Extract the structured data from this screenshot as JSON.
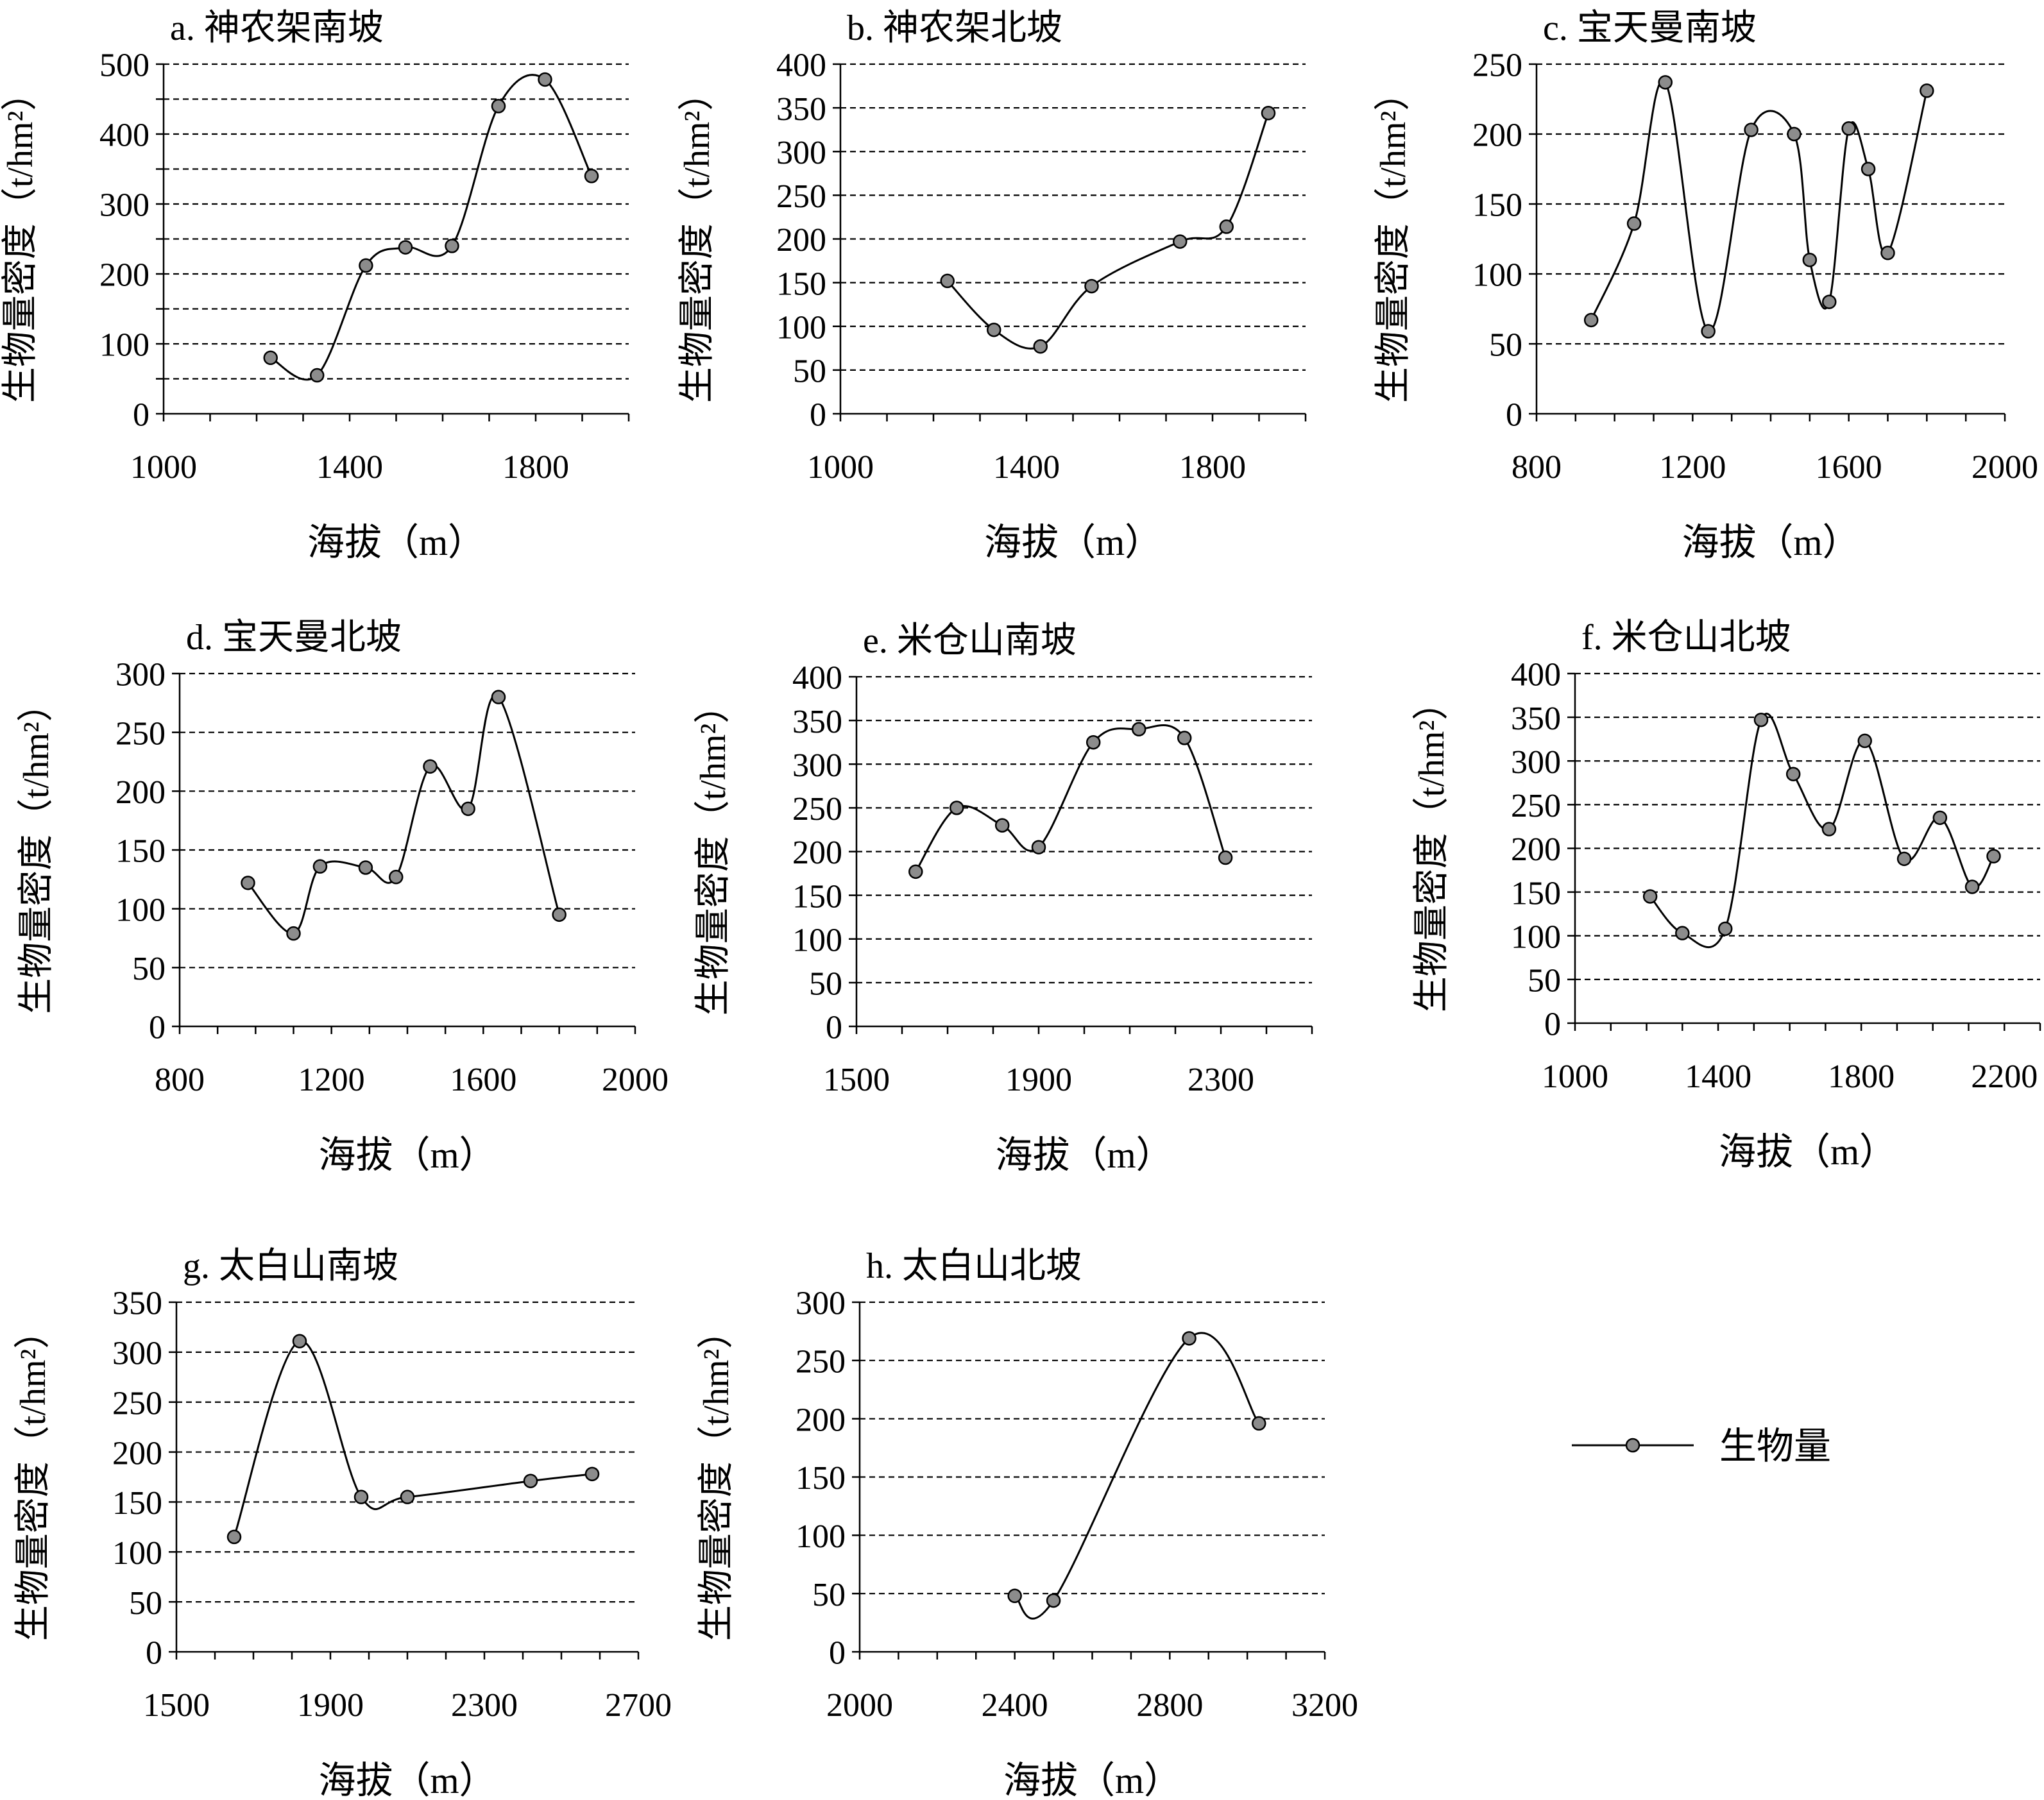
{
  "legend": {
    "label": "生物量",
    "position": "right"
  },
  "chart_data": [
    {
      "type": "line",
      "title": "a. 神农架南坡",
      "xlabel": "海拔（m）",
      "ylabel": "生物量密度（t/hm²）",
      "xlim": [
        1000,
        2000
      ],
      "ylim": [
        0,
        500
      ],
      "xticks": [
        1000,
        1400,
        1800
      ],
      "yticks": [
        0,
        100,
        200,
        300,
        400,
        500
      ],
      "grid_step": 50,
      "series": [
        {
          "name": "生物量",
          "x": [
            1230,
            1330,
            1435,
            1520,
            1620,
            1720,
            1820,
            1920
          ],
          "y": [
            80,
            55,
            212,
            238,
            240,
            440,
            478,
            340
          ]
        }
      ]
    },
    {
      "type": "line",
      "title": "b. 神农架北坡",
      "xlabel": "海拔（m）",
      "ylabel": "生物量密度（t/hm²）",
      "xlim": [
        1000,
        2000
      ],
      "ylim": [
        0,
        400
      ],
      "xticks": [
        1000,
        1400,
        1800
      ],
      "yticks": [
        0,
        50,
        100,
        150,
        200,
        250,
        300,
        350,
        400
      ],
      "grid_step": 50,
      "series": [
        {
          "name": "生物量",
          "x": [
            1230,
            1330,
            1430,
            1540,
            1730,
            1830,
            1920
          ],
          "y": [
            152,
            96,
            77,
            146,
            197,
            214,
            344
          ]
        }
      ]
    },
    {
      "type": "line",
      "title": "c. 宝天曼南坡",
      "xlabel": "海拔（m）",
      "ylabel": "生物量密度（t/hm²）",
      "xlim": [
        800,
        2000
      ],
      "ylim": [
        0,
        250
      ],
      "xticks": [
        800,
        1200,
        1600,
        2000
      ],
      "yticks": [
        0,
        50,
        100,
        150,
        200,
        250
      ],
      "grid_step": 50,
      "series": [
        {
          "name": "生物量",
          "x": [
            940,
            1050,
            1130,
            1240,
            1350,
            1460,
            1500,
            1550,
            1600,
            1650,
            1700,
            1800
          ],
          "y": [
            67,
            136,
            237,
            59,
            203,
            200,
            110,
            80,
            204,
            175,
            115,
            231
          ]
        }
      ]
    },
    {
      "type": "line",
      "title": "d. 宝天曼北坡",
      "xlabel": "海拔（m）",
      "ylabel": "生物量密度（t/hm²）",
      "xlim": [
        800,
        2000
      ],
      "ylim": [
        0,
        300
      ],
      "xticks": [
        800,
        1200,
        1600,
        2000
      ],
      "yticks": [
        0,
        50,
        100,
        150,
        200,
        250,
        300
      ],
      "grid_step": 50,
      "series": [
        {
          "name": "生物量",
          "x": [
            980,
            1100,
            1170,
            1290,
            1370,
            1460,
            1560,
            1640,
            1800
          ],
          "y": [
            122,
            79,
            136,
            135,
            127,
            221,
            185,
            280,
            95
          ]
        }
      ]
    },
    {
      "type": "line",
      "title": "e. 米仓山南坡",
      "xlabel": "海拔（m）",
      "ylabel": "生物量密度（t/hm²）",
      "xlim": [
        1500,
        2500
      ],
      "ylim": [
        0,
        400
      ],
      "xticks": [
        1500,
        1900,
        2300
      ],
      "yticks": [
        0,
        50,
        100,
        150,
        200,
        250,
        300,
        350,
        400
      ],
      "grid_step": 50,
      "series": [
        {
          "name": "生物量",
          "x": [
            1630,
            1720,
            1820,
            1900,
            2020,
            2120,
            2220,
            2310
          ],
          "y": [
            177,
            250,
            230,
            205,
            325,
            340,
            330,
            193
          ]
        }
      ]
    },
    {
      "type": "line",
      "title": "f. 米仓山北坡",
      "xlabel": "海拔（m）",
      "ylabel": "生物量密度（t/hm²）",
      "xlim": [
        1000,
        2300
      ],
      "ylim": [
        0,
        400
      ],
      "xticks": [
        1000,
        1400,
        1800,
        2200
      ],
      "yticks": [
        0,
        50,
        100,
        150,
        200,
        250,
        300,
        350,
        400
      ],
      "grid_step": 50,
      "series": [
        {
          "name": "生物量",
          "x": [
            1210,
            1300,
            1420,
            1520,
            1610,
            1710,
            1810,
            1920,
            2020,
            2110,
            2170
          ],
          "y": [
            145,
            103,
            108,
            347,
            285,
            222,
            323,
            188,
            235,
            156,
            191
          ]
        }
      ]
    },
    {
      "type": "line",
      "title": "g. 太白山南坡",
      "xlabel": "海拔（m）",
      "ylabel": "生物量密度（t/hm²）",
      "xlim": [
        1500,
        2700
      ],
      "ylim": [
        0,
        350
      ],
      "xticks": [
        1500,
        1900,
        2300,
        2700
      ],
      "yticks": [
        0,
        50,
        100,
        150,
        200,
        250,
        300,
        350
      ],
      "grid_step": 50,
      "series": [
        {
          "name": "生物量",
          "x": [
            1650,
            1820,
            1980,
            2100,
            2420,
            2580
          ],
          "y": [
            115,
            311,
            155,
            155,
            171,
            178
          ]
        }
      ]
    },
    {
      "type": "line",
      "title": "h. 太白山北坡",
      "xlabel": "海拔（m）",
      "ylabel": "生物量密度（t/hm²）",
      "xlim": [
        2000,
        3200
      ],
      "ylim": [
        0,
        300
      ],
      "xticks": [
        2000,
        2400,
        2800,
        3200
      ],
      "yticks": [
        0,
        50,
        100,
        150,
        200,
        250,
        300
      ],
      "grid_step": 50,
      "series": [
        {
          "name": "生物量",
          "x": [
            2400,
            2500,
            2850,
            3030
          ],
          "y": [
            48,
            44,
            269,
            196
          ]
        }
      ]
    }
  ]
}
